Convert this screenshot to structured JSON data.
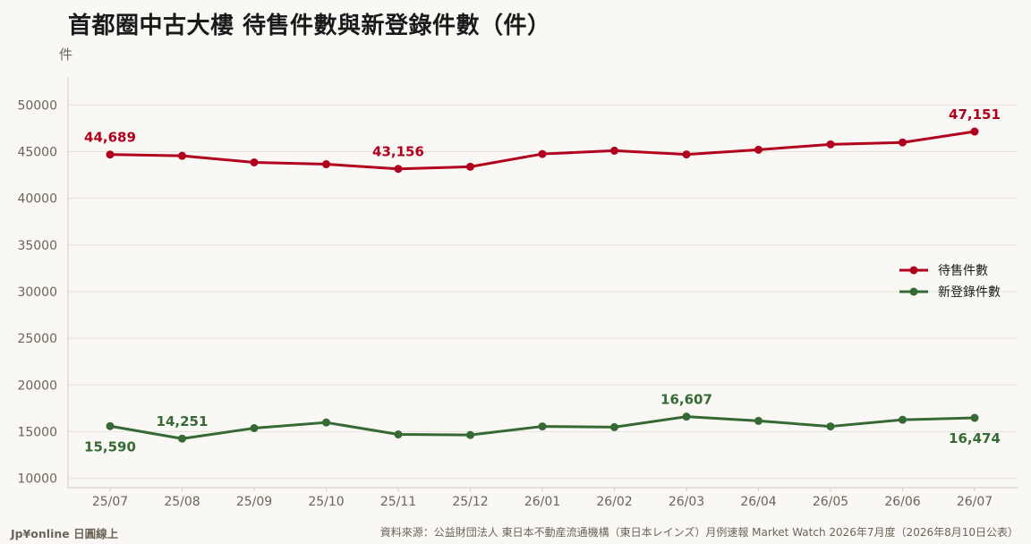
{
  "header": {
    "title": "首都圈中古大樓 待售件數與新登錄件數（件）",
    "unit": "件"
  },
  "footer": {
    "brand": "Jp¥online 日圓線上",
    "source": "資料來源：公益財団法人 東日本不動産流通機構（東日本レインズ）月例速報 Market Watch 2026年7月度（2026年8月10日公表）"
  },
  "colors": {
    "stock": "#b0001e",
    "new": "#356a35",
    "grid": "#e6e2da",
    "axis_text": "#6b6458"
  },
  "chart_data": {
    "type": "line",
    "title": "首都圈中古大樓 待售件數與新登錄件數（件）",
    "ylabel": "件",
    "xlabel": "",
    "categories": [
      "25/07",
      "25/08",
      "25/09",
      "25/10",
      "25/11",
      "25/12",
      "26/01",
      "26/02",
      "26/03",
      "26/04",
      "26/05",
      "26/06",
      "26/07"
    ],
    "ylim": [
      9000,
      53000
    ],
    "yticks": [
      10000,
      15000,
      20000,
      25000,
      30000,
      35000,
      40000,
      45000,
      50000
    ],
    "grid": true,
    "legend_position": "right",
    "series": [
      {
        "name": "待售件數",
        "color_key": "stock",
        "values": [
          44689,
          44550,
          43850,
          43650,
          43156,
          43380,
          44750,
          45100,
          44700,
          45200,
          45780,
          45980,
          47151
        ],
        "labels": [
          {
            "index": 0,
            "text": "44,689",
            "pos": "above"
          },
          {
            "index": 4,
            "text": "43,156",
            "pos": "above"
          },
          {
            "index": 12,
            "text": "47,151",
            "pos": "above"
          }
        ]
      },
      {
        "name": "新登錄件數",
        "color_key": "new",
        "values": [
          15590,
          14251,
          15370,
          15980,
          14700,
          14640,
          15560,
          15480,
          16607,
          16150,
          15560,
          16270,
          16474
        ],
        "labels": [
          {
            "index": 0,
            "text": "15,590",
            "pos": "below"
          },
          {
            "index": 1,
            "text": "14,251",
            "pos": "above"
          },
          {
            "index": 8,
            "text": "16,607",
            "pos": "above"
          },
          {
            "index": 12,
            "text": "16,474",
            "pos": "below"
          }
        ]
      }
    ]
  }
}
